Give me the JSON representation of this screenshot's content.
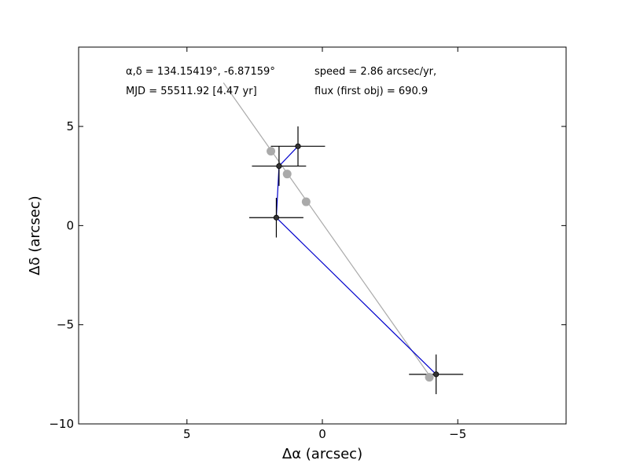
{
  "chart_data": {
    "type": "scatter",
    "title": "",
    "xlabel": "Δα (arcsec)",
    "ylabel": "Δδ (arcsec)",
    "xlim": [
      9,
      -9
    ],
    "ylim": [
      -10,
      9
    ],
    "x_inverted": true,
    "grid": false,
    "xticks": [
      {
        "value": 5,
        "label": "5"
      },
      {
        "value": 0,
        "label": "0"
      },
      {
        "value": -5,
        "label": "−5"
      }
    ],
    "yticks": [
      {
        "value": 5,
        "label": "5"
      },
      {
        "value": 0,
        "label": "0"
      },
      {
        "value": -5,
        "label": "−5"
      },
      {
        "value": -10,
        "label": "−10"
      }
    ],
    "annotations": {
      "coords": "α,δ = 134.15419°, -6.87159°",
      "mjd": "MJD = 55511.92 [4.47 yr]",
      "speed": "speed = 2.86 arcsec/yr,",
      "flux": "flux (first obj) = 690.9"
    },
    "fit_line": {
      "x": [
        3.65,
        -4.0
      ],
      "y": [
        7.2,
        -7.65
      ],
      "color": "#aaaaaa"
    },
    "gray_points": {
      "x": [
        1.9,
        1.3,
        0.6,
        -3.95
      ],
      "y": [
        3.75,
        2.6,
        1.2,
        -7.65
      ],
      "color": "#aaaaaa"
    },
    "observations": {
      "x": [
        0.9,
        1.6,
        1.7,
        -4.2
      ],
      "y": [
        4.0,
        3.0,
        0.4,
        -7.5
      ],
      "xerr": [
        1.0,
        1.0,
        1.0,
        1.0
      ],
      "yerr": [
        1.0,
        1.0,
        1.0,
        1.0
      ],
      "point_color": "#333333",
      "path_color": "#0000cc"
    }
  }
}
